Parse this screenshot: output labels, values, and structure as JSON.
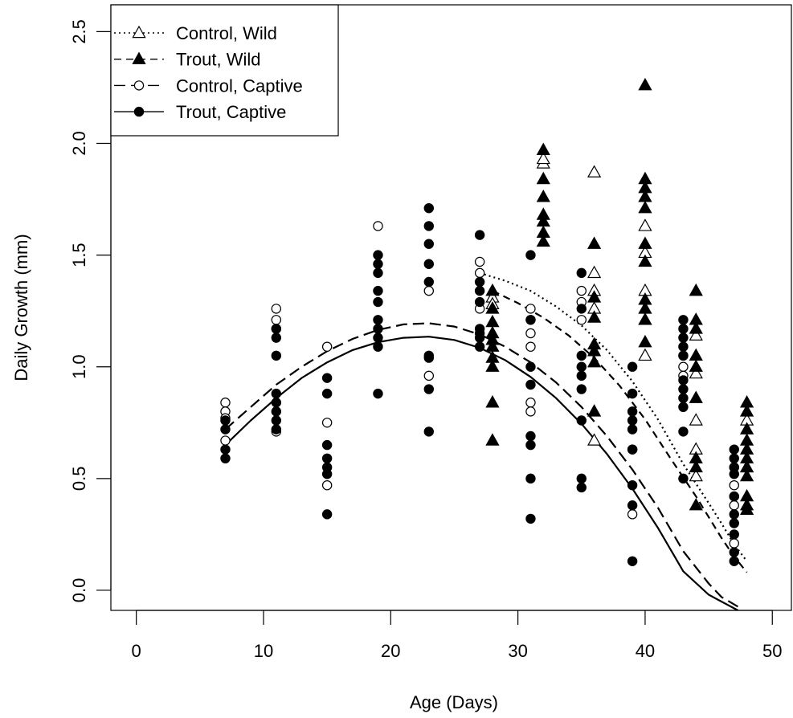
{
  "chart_data": {
    "type": "scatter",
    "title": "",
    "xlabel": "Age (Days)",
    "ylabel": "Daily Growth (mm)",
    "xlim": [
      -2,
      51.5
    ],
    "ylim": [
      -0.09,
      2.62
    ],
    "xticks": [
      0,
      10,
      20,
      30,
      40,
      50
    ],
    "yticks": [
      0.0,
      0.5,
      1.0,
      1.5,
      2.0,
      2.5
    ],
    "xtick_labels": [
      "0",
      "10",
      "20",
      "30",
      "40",
      "50"
    ],
    "ytick_labels": [
      "0.0",
      "0.5",
      "1.0",
      "1.5",
      "2.0",
      "2.5"
    ],
    "grid": false,
    "legend_position": "top-left",
    "series": [
      {
        "name": "Control, Wild",
        "marker": "open-triangle",
        "line": "dotted",
        "points": [
          [
            28,
            1.31
          ],
          [
            28,
            1.28
          ],
          [
            32,
            1.91
          ],
          [
            32,
            1.93
          ],
          [
            36,
            1.87
          ],
          [
            36,
            1.42
          ],
          [
            36,
            1.34
          ],
          [
            36,
            1.26
          ],
          [
            36,
            0.67
          ],
          [
            40,
            1.63
          ],
          [
            40,
            1.51
          ],
          [
            40,
            1.34
          ],
          [
            40,
            1.21
          ],
          [
            40,
            1.05
          ],
          [
            44,
            1.14
          ],
          [
            44,
            0.97
          ],
          [
            44,
            0.76
          ],
          [
            44,
            0.63
          ],
          [
            44,
            0.51
          ],
          [
            48,
            0.76
          ],
          [
            48,
            0.55
          ]
        ],
        "curve": [
          [
            27,
            1.42
          ],
          [
            29,
            1.385
          ],
          [
            31,
            1.34
          ],
          [
            33,
            1.27
          ],
          [
            35,
            1.185
          ],
          [
            37,
            1.075
          ],
          [
            39,
            0.935
          ],
          [
            41,
            0.765
          ],
          [
            43,
            0.565
          ],
          [
            45,
            0.39
          ],
          [
            46,
            0.3
          ],
          [
            47,
            0.205
          ],
          [
            48,
            0.13
          ]
        ]
      },
      {
        "name": "Trout, Wild",
        "marker": "filled-triangle",
        "line": "dashed",
        "points": [
          [
            28,
            1.34
          ],
          [
            28,
            1.26
          ],
          [
            28,
            1.2
          ],
          [
            28,
            1.15
          ],
          [
            28,
            1.12
          ],
          [
            28,
            1.09
          ],
          [
            28,
            1.04
          ],
          [
            28,
            1.0
          ],
          [
            28,
            0.84
          ],
          [
            28,
            0.67
          ],
          [
            32,
            1.97
          ],
          [
            32,
            1.84
          ],
          [
            32,
            1.76
          ],
          [
            32,
            1.68
          ],
          [
            32,
            1.65
          ],
          [
            32,
            1.6
          ],
          [
            32,
            1.56
          ],
          [
            36,
            1.55
          ],
          [
            36,
            1.31
          ],
          [
            36,
            1.22
          ],
          [
            36,
            1.1
          ],
          [
            36,
            1.07
          ],
          [
            36,
            1.02
          ],
          [
            36,
            0.8
          ],
          [
            40,
            2.26
          ],
          [
            40,
            1.84
          ],
          [
            40,
            1.8
          ],
          [
            40,
            1.76
          ],
          [
            40,
            1.71
          ],
          [
            40,
            1.55
          ],
          [
            40,
            1.47
          ],
          [
            40,
            1.3
          ],
          [
            40,
            1.26
          ],
          [
            40,
            1.21
          ],
          [
            40,
            1.11
          ],
          [
            44,
            1.34
          ],
          [
            44,
            1.21
          ],
          [
            44,
            1.17
          ],
          [
            44,
            1.05
          ],
          [
            44,
            1.0
          ],
          [
            44,
            0.86
          ],
          [
            44,
            0.59
          ],
          [
            44,
            0.55
          ],
          [
            44,
            0.38
          ],
          [
            48,
            0.84
          ],
          [
            48,
            0.8
          ],
          [
            48,
            0.72
          ],
          [
            48,
            0.67
          ],
          [
            48,
            0.63
          ],
          [
            48,
            0.59
          ],
          [
            48,
            0.55
          ],
          [
            48,
            0.51
          ],
          [
            48,
            0.42
          ],
          [
            48,
            0.38
          ],
          [
            48,
            0.36
          ]
        ],
        "curve": [
          [
            28,
            1.34
          ],
          [
            30,
            1.285
          ],
          [
            32,
            1.22
          ],
          [
            34,
            1.14
          ],
          [
            36,
            1.04
          ],
          [
            38,
            0.915
          ],
          [
            40,
            0.765
          ],
          [
            42,
            0.59
          ],
          [
            44,
            0.42
          ],
          [
            46,
            0.235
          ],
          [
            47,
            0.15
          ],
          [
            48,
            0.08
          ]
        ]
      },
      {
        "name": "Control, Captive",
        "marker": "open-circle",
        "line": "long-dashed",
        "points": [
          [
            7,
            0.84
          ],
          [
            7,
            0.8
          ],
          [
            7,
            0.77
          ],
          [
            7,
            0.67
          ],
          [
            11,
            1.26
          ],
          [
            11,
            1.21
          ],
          [
            11,
            1.17
          ],
          [
            11,
            0.71
          ],
          [
            15,
            1.09
          ],
          [
            15,
            0.75
          ],
          [
            15,
            0.47
          ],
          [
            19,
            1.63
          ],
          [
            23,
            1.34
          ],
          [
            23,
            0.96
          ],
          [
            27,
            1.47
          ],
          [
            27,
            1.42
          ],
          [
            27,
            1.26
          ],
          [
            31,
            1.26
          ],
          [
            31,
            1.21
          ],
          [
            31,
            1.15
          ],
          [
            31,
            1.09
          ],
          [
            31,
            0.84
          ],
          [
            31,
            0.8
          ],
          [
            35,
            1.34
          ],
          [
            35,
            1.29
          ],
          [
            35,
            1.21
          ],
          [
            39,
            0.63
          ],
          [
            39,
            0.34
          ],
          [
            43,
            1.05
          ],
          [
            43,
            1.0
          ],
          [
            43,
            0.96
          ],
          [
            47,
            0.55
          ],
          [
            47,
            0.47
          ],
          [
            47,
            0.42
          ],
          [
            47,
            0.38
          ],
          [
            47,
            0.21
          ]
        ],
        "curve": [
          [
            7,
            0.72
          ],
          [
            9,
            0.82
          ],
          [
            11,
            0.92
          ],
          [
            13,
            1.0
          ],
          [
            15,
            1.07
          ],
          [
            17,
            1.125
          ],
          [
            19,
            1.165
          ],
          [
            21,
            1.19
          ],
          [
            23,
            1.195
          ],
          [
            25,
            1.18
          ],
          [
            27,
            1.145
          ],
          [
            29,
            1.09
          ],
          [
            31,
            1.02
          ],
          [
            33,
            0.93
          ],
          [
            35,
            0.82
          ],
          [
            37,
            0.69
          ],
          [
            39,
            0.54
          ],
          [
            41,
            0.37
          ],
          [
            43,
            0.175
          ],
          [
            45,
            0.03
          ],
          [
            46,
            -0.03
          ],
          [
            47.5,
            -0.08
          ]
        ]
      },
      {
        "name": "Trout, Captive",
        "marker": "filled-circle",
        "line": "solid",
        "points": [
          [
            7,
            0.76
          ],
          [
            7,
            0.72
          ],
          [
            7,
            0.63
          ],
          [
            7,
            0.59
          ],
          [
            11,
            1.17
          ],
          [
            11,
            1.13
          ],
          [
            11,
            1.05
          ],
          [
            11,
            0.88
          ],
          [
            11,
            0.84
          ],
          [
            11,
            0.8
          ],
          [
            11,
            0.76
          ],
          [
            11,
            0.72
          ],
          [
            15,
            0.95
          ],
          [
            15,
            0.88
          ],
          [
            15,
            0.65
          ],
          [
            15,
            0.59
          ],
          [
            15,
            0.55
          ],
          [
            15,
            0.52
          ],
          [
            15,
            0.34
          ],
          [
            19,
            1.5
          ],
          [
            19,
            1.46
          ],
          [
            19,
            1.42
          ],
          [
            19,
            1.34
          ],
          [
            19,
            1.29
          ],
          [
            19,
            1.21
          ],
          [
            19,
            1.17
          ],
          [
            19,
            1.13
          ],
          [
            19,
            1.09
          ],
          [
            19,
            0.88
          ],
          [
            23,
            1.71
          ],
          [
            23,
            1.63
          ],
          [
            23,
            1.55
          ],
          [
            23,
            1.46
          ],
          [
            23,
            1.38
          ],
          [
            23,
            1.05
          ],
          [
            23,
            1.04
          ],
          [
            23,
            0.9
          ],
          [
            23,
            0.71
          ],
          [
            27,
            1.59
          ],
          [
            27,
            1.38
          ],
          [
            27,
            1.34
          ],
          [
            27,
            1.29
          ],
          [
            27,
            1.17
          ],
          [
            27,
            1.15
          ],
          [
            27,
            1.13
          ],
          [
            27,
            1.09
          ],
          [
            31,
            1.5
          ],
          [
            31,
            1.21
          ],
          [
            31,
            1.0
          ],
          [
            31,
            0.92
          ],
          [
            31,
            0.69
          ],
          [
            31,
            0.65
          ],
          [
            31,
            0.5
          ],
          [
            31,
            0.32
          ],
          [
            35,
            1.42
          ],
          [
            35,
            1.26
          ],
          [
            35,
            1.05
          ],
          [
            35,
            1.0
          ],
          [
            35,
            0.96
          ],
          [
            35,
            0.9
          ],
          [
            35,
            0.76
          ],
          [
            35,
            0.5
          ],
          [
            35,
            0.46
          ],
          [
            39,
            1.0
          ],
          [
            39,
            0.88
          ],
          [
            39,
            0.8
          ],
          [
            39,
            0.76
          ],
          [
            39,
            0.72
          ],
          [
            39,
            0.63
          ],
          [
            39,
            0.47
          ],
          [
            39,
            0.38
          ],
          [
            39,
            0.13
          ],
          [
            43,
            1.21
          ],
          [
            43,
            1.17
          ],
          [
            43,
            1.13
          ],
          [
            43,
            1.09
          ],
          [
            43,
            1.05
          ],
          [
            43,
            0.94
          ],
          [
            43,
            0.9
          ],
          [
            43,
            0.86
          ],
          [
            43,
            0.82
          ],
          [
            43,
            0.71
          ],
          [
            43,
            0.5
          ],
          [
            47,
            0.63
          ],
          [
            47,
            0.59
          ],
          [
            47,
            0.55
          ],
          [
            47,
            0.52
          ],
          [
            47,
            0.42
          ],
          [
            47,
            0.34
          ],
          [
            47,
            0.3
          ],
          [
            47,
            0.25
          ],
          [
            47,
            0.17
          ],
          [
            47,
            0.13
          ]
        ],
        "curve": [
          [
            7,
            0.65
          ],
          [
            9,
            0.76
          ],
          [
            11,
            0.86
          ],
          [
            13,
            0.95
          ],
          [
            15,
            1.02
          ],
          [
            17,
            1.075
          ],
          [
            19,
            1.11
          ],
          [
            21,
            1.13
          ],
          [
            23,
            1.135
          ],
          [
            25,
            1.12
          ],
          [
            27,
            1.085
          ],
          [
            29,
            1.03
          ],
          [
            31,
            0.955
          ],
          [
            33,
            0.86
          ],
          [
            35,
            0.745
          ],
          [
            37,
            0.61
          ],
          [
            39,
            0.455
          ],
          [
            41,
            0.28
          ],
          [
            43,
            0.085
          ],
          [
            45,
            -0.02
          ],
          [
            47.3,
            -0.09
          ]
        ]
      }
    ]
  }
}
